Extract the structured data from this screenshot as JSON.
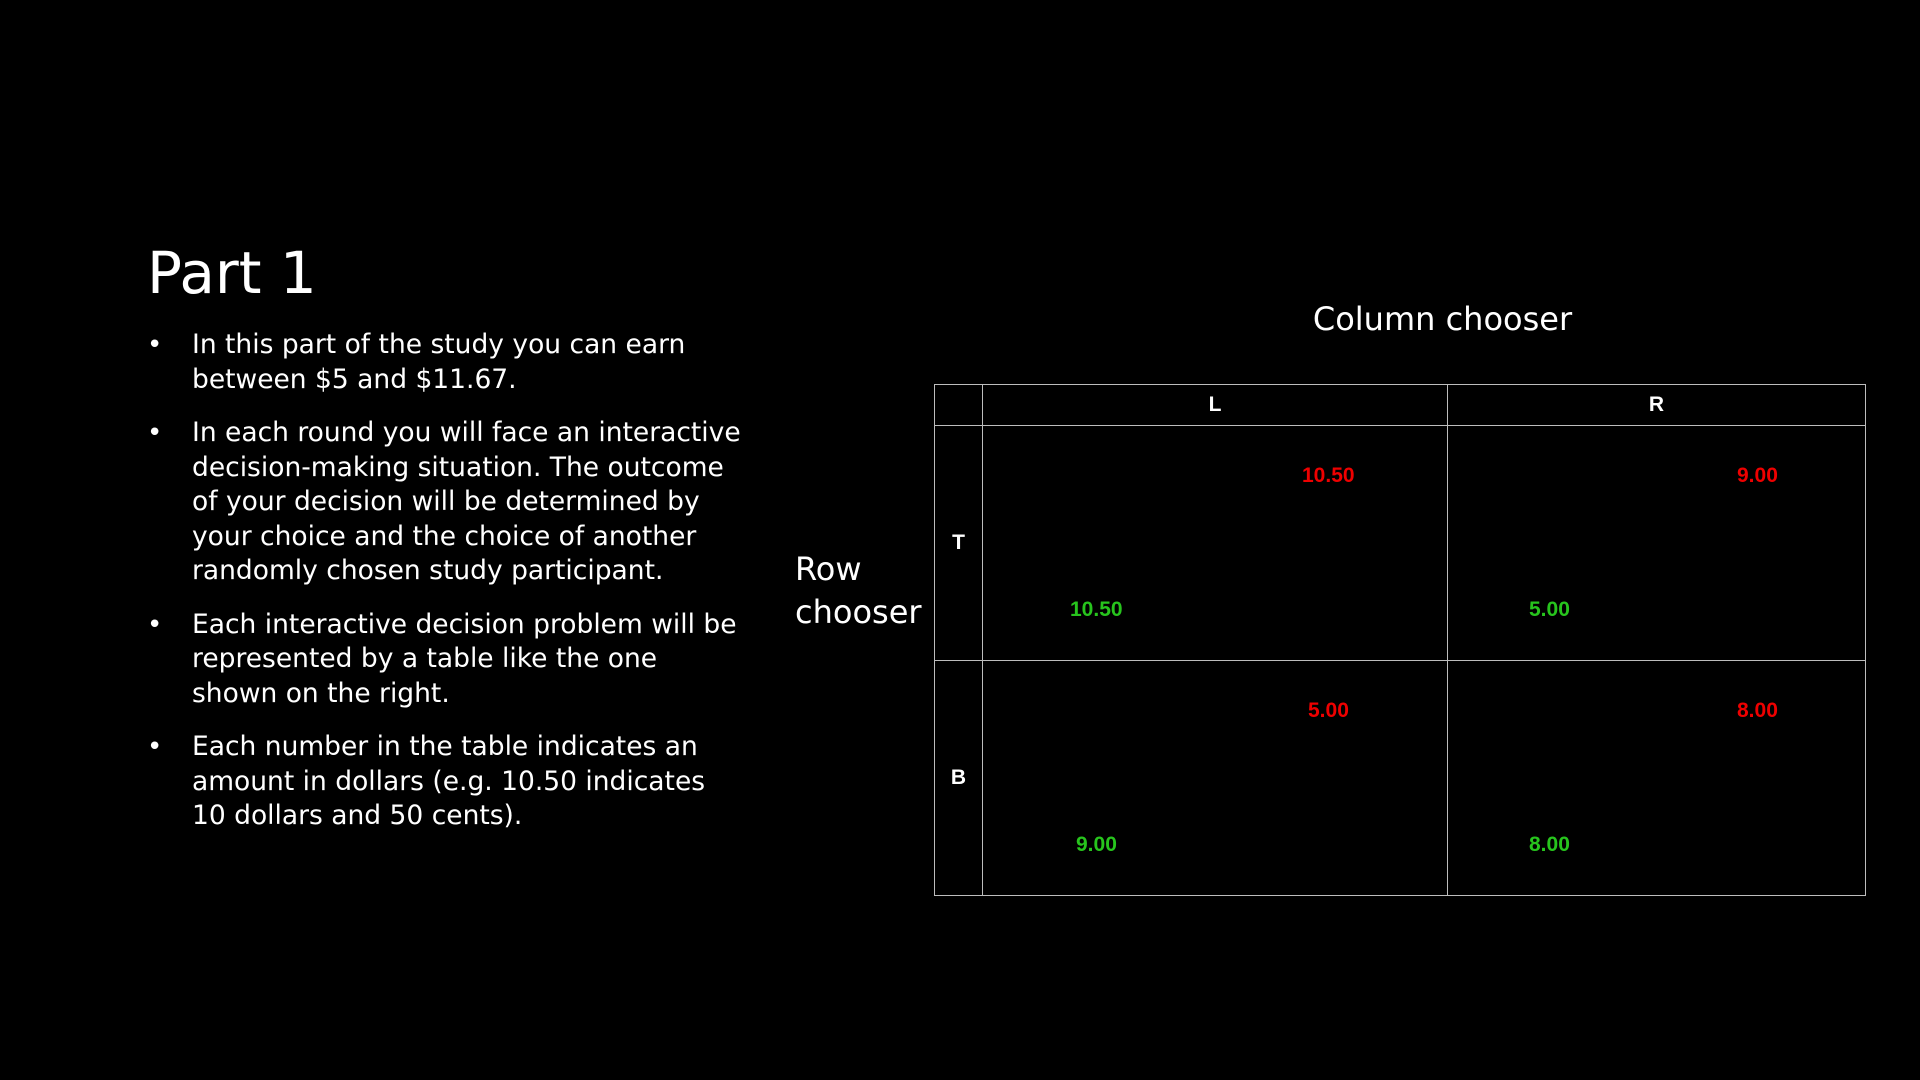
{
  "slide": {
    "title": "Part 1",
    "bullet_glyph": "•",
    "bullets": [
      "In this part of the study you can earn between $5 and $11.67.",
      "In each round you will face an interactive decision-making situation. The outcome of your decision will be determined by your choice and the choice of another randomly chosen study participant.",
      "Each interactive decision problem will be represented by a table like the one shown on the right.",
      "Each number in the table indicates an amount in dollars (e.g. 10.50 indicates 10 dollars and 50 cents)."
    ]
  },
  "game": {
    "column_label": "Column chooser",
    "row_label_line1": "Row",
    "row_label_line2": "chooser",
    "columns": [
      "L",
      "R"
    ],
    "rows": [
      "T",
      "B"
    ],
    "payoffs": {
      "TL": {
        "column": "10.50",
        "row": "10.50"
      },
      "TR": {
        "column": "9.00",
        "row": "5.00"
      },
      "BL": {
        "column": "5.00",
        "row": "9.00"
      },
      "BR": {
        "column": "8.00",
        "row": "8.00"
      }
    },
    "colors": {
      "column_payoff": "#ee0000",
      "row_payoff": "#27c41d"
    }
  }
}
